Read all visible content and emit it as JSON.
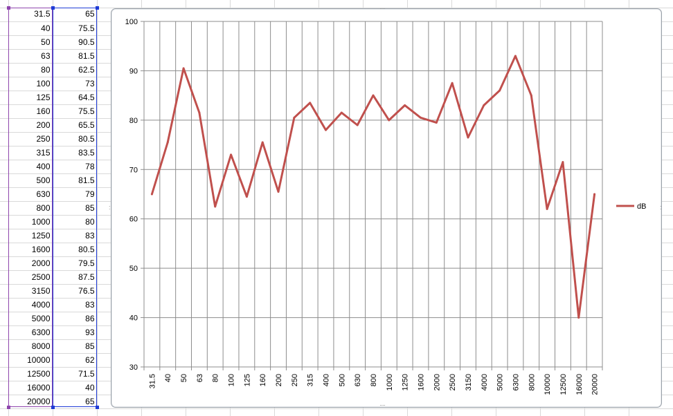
{
  "table": {
    "x": [
      "31.5",
      "40",
      "50",
      "63",
      "80",
      "100",
      "125",
      "160",
      "200",
      "250",
      "315",
      "400",
      "500",
      "630",
      "800",
      "1000",
      "1250",
      "1600",
      "2000",
      "2500",
      "3150",
      "4000",
      "5000",
      "6300",
      "8000",
      "10000",
      "12500",
      "16000",
      "20000"
    ],
    "y": [
      "65",
      "75.5",
      "90.5",
      "81.5",
      "62.5",
      "73",
      "64.5",
      "75.5",
      "65.5",
      "80.5",
      "83.5",
      "78",
      "81.5",
      "79",
      "85",
      "80",
      "83",
      "80.5",
      "79.5",
      "87.5",
      "76.5",
      "83",
      "86",
      "93",
      "85",
      "62",
      "71.5",
      "40",
      "65"
    ]
  },
  "chart_data": {
    "type": "line",
    "categories": [
      "31.5",
      "40",
      "50",
      "63",
      "80",
      "100",
      "125",
      "160",
      "200",
      "250",
      "315",
      "400",
      "500",
      "630",
      "800",
      "1000",
      "1250",
      "1600",
      "2000",
      "2500",
      "3150",
      "4000",
      "5000",
      "6300",
      "8000",
      "10000",
      "12500",
      "16000",
      "20000"
    ],
    "series": [
      {
        "name": "dB",
        "values": [
          65,
          75.5,
          90.5,
          81.5,
          62.5,
          73,
          64.5,
          75.5,
          65.5,
          80.5,
          83.5,
          78,
          81.5,
          79,
          85,
          80,
          83,
          80.5,
          79.5,
          87.5,
          76.5,
          83,
          86,
          93,
          85,
          62,
          71.5,
          40,
          65
        ],
        "color": "#c0504d"
      }
    ],
    "title": "",
    "xlabel": "",
    "ylabel": "",
    "ylim": [
      30,
      100
    ],
    "yticks": [
      30,
      40,
      50,
      60,
      70,
      80,
      90,
      100
    ],
    "grid": "both",
    "legend_position": "right"
  }
}
